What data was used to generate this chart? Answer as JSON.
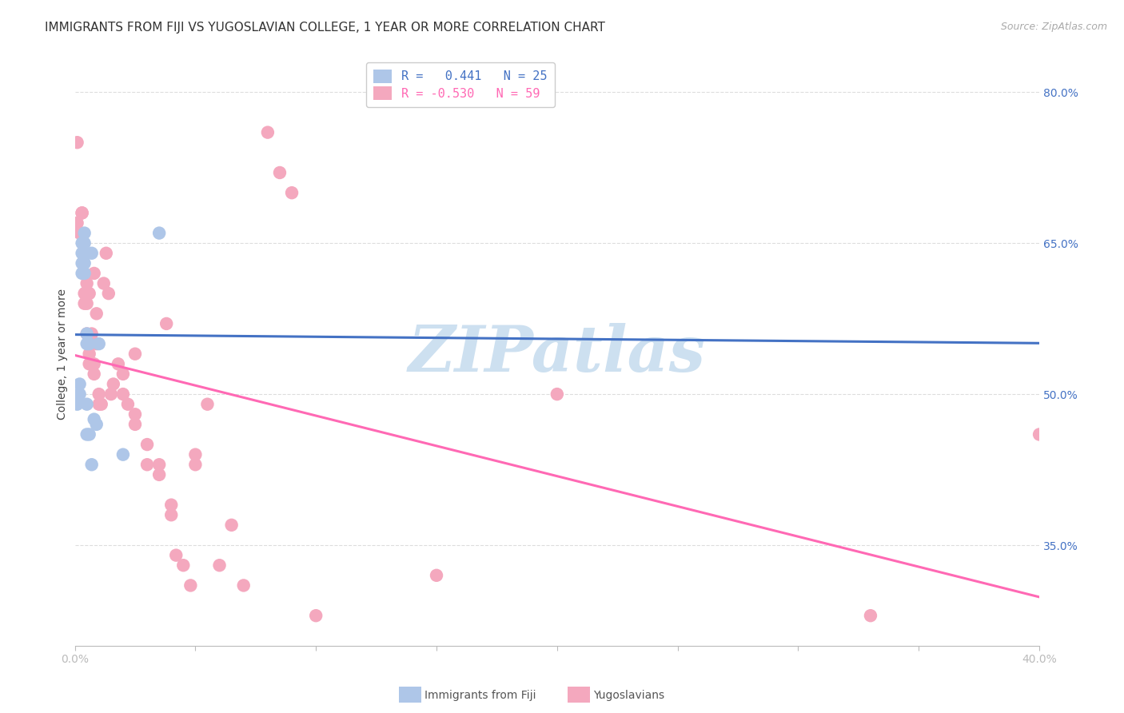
{
  "title": "IMMIGRANTS FROM FIJI VS YUGOSLAVIAN COLLEGE, 1 YEAR OR MORE CORRELATION CHART",
  "source": "Source: ZipAtlas.com",
  "ylabel": "College, 1 year or more",
  "xlim": [
    0.0,
    0.4
  ],
  "ylim": [
    0.25,
    0.83
  ],
  "y_ticks": [
    0.35,
    0.5,
    0.65,
    0.8
  ],
  "y_tick_labels": [
    "35.0%",
    "50.0%",
    "65.0%",
    "80.0%"
  ],
  "x_ticks": [
    0.0,
    0.05,
    0.1,
    0.15,
    0.2,
    0.25,
    0.3,
    0.35,
    0.4
  ],
  "x_tick_labels": [
    "0.0%",
    "",
    "",
    "",
    "",
    "",
    "",
    "",
    "40.0%"
  ],
  "fiji_color": "#aec6e8",
  "yugo_color": "#f4a8be",
  "fiji_line_color": "#4472C4",
  "yugo_line_color": "#FF69B4",
  "legend_label_fiji": "R =   0.441   N = 25",
  "legend_label_yugo": "R = -0.530   N = 59",
  "fiji_x": [
    0.001,
    0.002,
    0.002,
    0.003,
    0.003,
    0.003,
    0.003,
    0.004,
    0.004,
    0.004,
    0.004,
    0.004,
    0.005,
    0.005,
    0.005,
    0.005,
    0.006,
    0.006,
    0.007,
    0.007,
    0.008,
    0.009,
    0.01,
    0.02,
    0.035
  ],
  "fiji_y": [
    0.49,
    0.5,
    0.51,
    0.62,
    0.63,
    0.64,
    0.65,
    0.62,
    0.63,
    0.64,
    0.65,
    0.66,
    0.46,
    0.49,
    0.55,
    0.56,
    0.46,
    0.55,
    0.43,
    0.64,
    0.475,
    0.47,
    0.55,
    0.44,
    0.66
  ],
  "yugo_x": [
    0.001,
    0.001,
    0.002,
    0.003,
    0.003,
    0.004,
    0.004,
    0.005,
    0.005,
    0.005,
    0.006,
    0.006,
    0.006,
    0.007,
    0.007,
    0.008,
    0.008,
    0.008,
    0.009,
    0.009,
    0.01,
    0.01,
    0.011,
    0.012,
    0.013,
    0.014,
    0.015,
    0.016,
    0.018,
    0.02,
    0.02,
    0.022,
    0.025,
    0.025,
    0.025,
    0.03,
    0.03,
    0.035,
    0.035,
    0.038,
    0.04,
    0.04,
    0.042,
    0.045,
    0.048,
    0.05,
    0.05,
    0.055,
    0.06,
    0.065,
    0.07,
    0.08,
    0.085,
    0.09,
    0.1,
    0.15,
    0.2,
    0.33,
    0.4
  ],
  "yugo_y": [
    0.67,
    0.75,
    0.66,
    0.68,
    0.68,
    0.59,
    0.6,
    0.56,
    0.59,
    0.61,
    0.53,
    0.54,
    0.6,
    0.53,
    0.56,
    0.52,
    0.53,
    0.62,
    0.55,
    0.58,
    0.49,
    0.5,
    0.49,
    0.61,
    0.64,
    0.6,
    0.5,
    0.51,
    0.53,
    0.5,
    0.52,
    0.49,
    0.47,
    0.48,
    0.54,
    0.43,
    0.45,
    0.42,
    0.43,
    0.57,
    0.38,
    0.39,
    0.34,
    0.33,
    0.31,
    0.43,
    0.44,
    0.49,
    0.33,
    0.37,
    0.31,
    0.76,
    0.72,
    0.7,
    0.28,
    0.32,
    0.5,
    0.28,
    0.46
  ],
  "background_color": "#ffffff",
  "grid_color": "#dddddd",
  "watermark_color": "#cde0f0",
  "title_fontsize": 11,
  "axis_label_fontsize": 10,
  "tick_fontsize": 10,
  "source_fontsize": 9
}
